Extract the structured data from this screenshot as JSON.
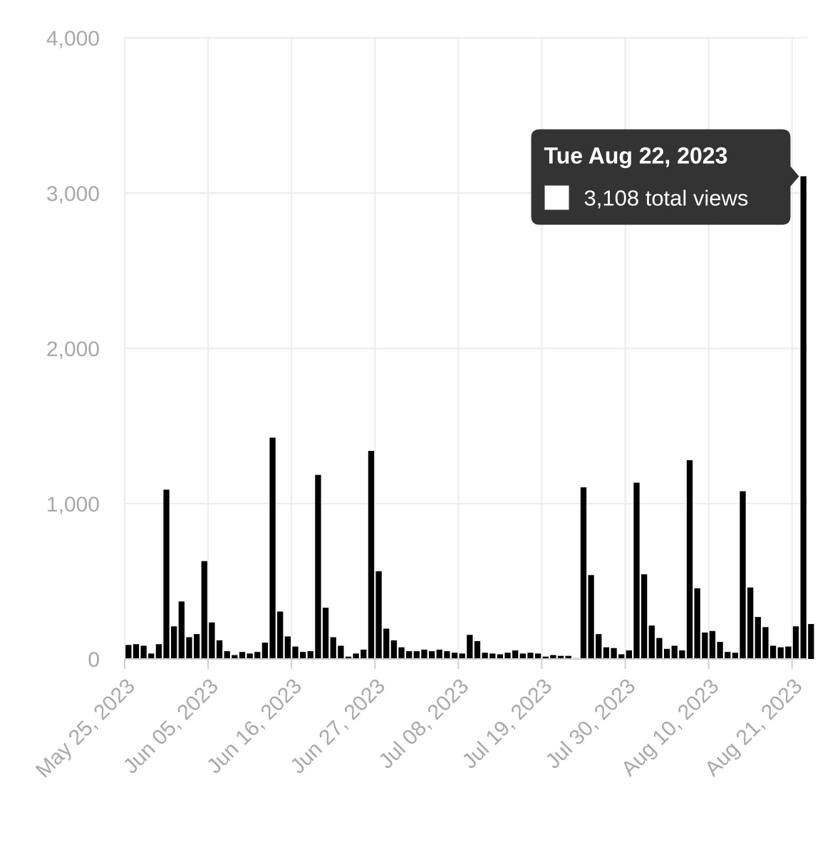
{
  "chart_data": {
    "type": "bar",
    "title": "",
    "xlabel": "",
    "ylabel": "",
    "x_start": "2023-05-25",
    "x_end": "2023-08-23",
    "ylim": [
      0,
      4000
    ],
    "grid": true,
    "y_ticks": [
      0,
      1000,
      2000,
      3000,
      4000
    ],
    "y_tick_labels": [
      "0",
      "1,000",
      "2,000",
      "3,000",
      "4,000"
    ],
    "x_ticks": [
      "2023-05-25",
      "2023-06-05",
      "2023-06-16",
      "2023-06-27",
      "2023-07-08",
      "2023-07-19",
      "2023-07-30",
      "2023-08-10",
      "2023-08-21"
    ],
    "x_tick_labels": [
      "May 25, 2023",
      "Jun 05, 2023",
      "Jun 16, 2023",
      "Jun 27, 2023",
      "Jul 08, 2023",
      "Jul 19, 2023",
      "Jul 30, 2023",
      "Aug 10, 2023",
      "Aug 21, 2023"
    ],
    "bar_color": "#000000",
    "series": [
      {
        "values": [
          90,
          95,
          85,
          35,
          95,
          1090,
          210,
          370,
          140,
          160,
          630,
          235,
          120,
          50,
          25,
          45,
          35,
          45,
          105,
          1425,
          305,
          145,
          80,
          45,
          50,
          1185,
          330,
          140,
          85,
          15,
          35,
          60,
          1340,
          565,
          195,
          120,
          75,
          50,
          50,
          60,
          50,
          60,
          50,
          40,
          35,
          155,
          115,
          40,
          35,
          30,
          40,
          55,
          35,
          40,
          35,
          15,
          25,
          20,
          20,
          5,
          1105,
          540,
          160,
          75,
          70,
          30,
          55,
          1135,
          545,
          215,
          135,
          65,
          85,
          55,
          1280,
          455,
          170,
          180,
          110,
          45,
          40,
          1080,
          460,
          270,
          205,
          85,
          75,
          80,
          210,
          3108,
          225
        ]
      }
    ]
  },
  "tooltip": {
    "title": "Tue Aug 22, 2023",
    "value_text": "3,108 total views",
    "target_date": "2023-08-22",
    "background": "#333333",
    "text_color": "#ffffff"
  }
}
